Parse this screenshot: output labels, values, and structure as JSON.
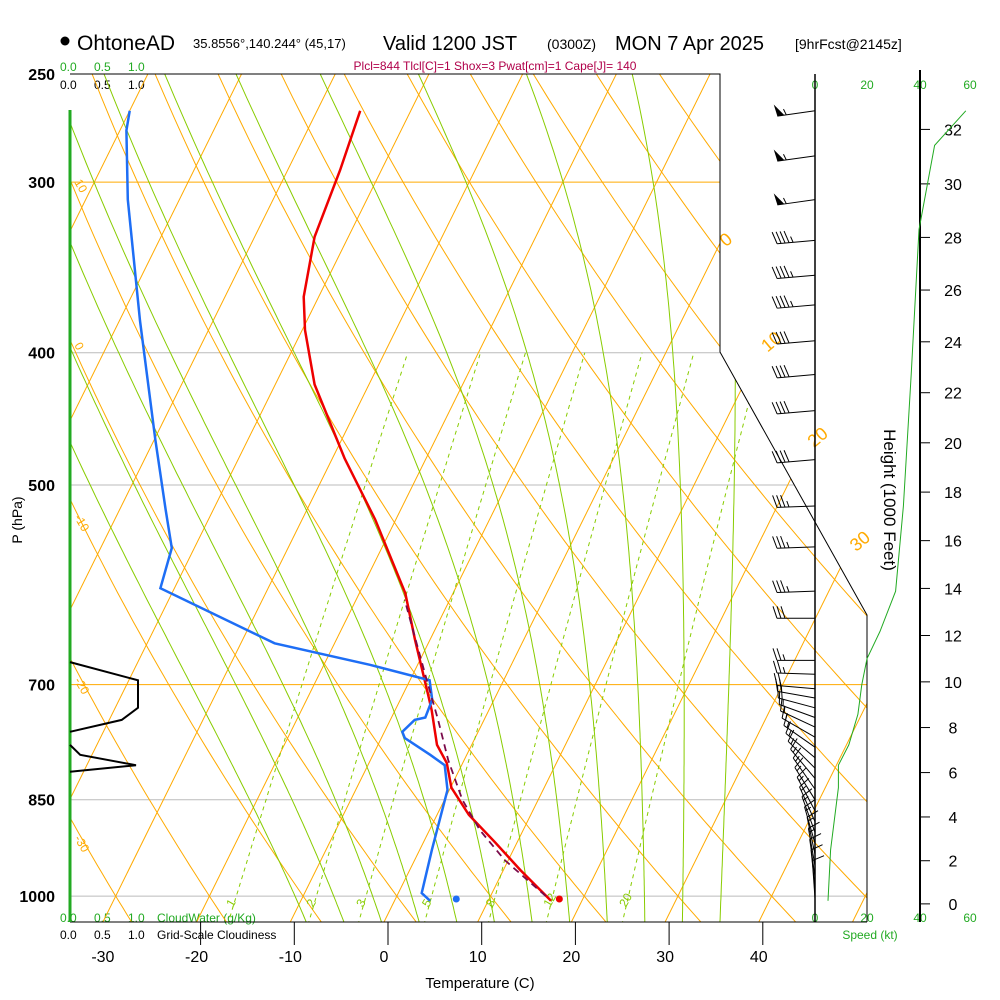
{
  "title": {
    "station": "OhtoneAD",
    "coords": "35.8556°,140.244° (45,17)",
    "valid": "Valid 1200 JST",
    "utc": "(0300Z)",
    "date": "MON 7 Apr 2025",
    "forecast": "[9hrFcst@2145z]"
  },
  "stats_line": "Plcl=844 Tlcl[C]=1 Shox=3 Pwat[cm]=1 Cape[J]= 140",
  "cloud_scale": {
    "water_ticks": [
      "0.0",
      "0.5",
      "1.0"
    ],
    "cover_ticks": [
      "0.0",
      "0.5",
      "1.0"
    ],
    "water_label": "CloudWater (g/Kg)",
    "cover_label": "Grid-Scale Cloudiness"
  },
  "speed_axis": {
    "ticks": [
      "0",
      "20",
      "40",
      "60"
    ],
    "label": "Speed (kt)"
  },
  "colors": {
    "temperature": "#ee0000",
    "dewpoint": "#1e6ef5",
    "parcel": "#7a0a4a",
    "isotherm": "#ffaa00",
    "moist": "#88cc00",
    "speed": "#22aa22",
    "stats": "#b0004a"
  },
  "chart_data": {
    "type": "line",
    "title": "Skew-T log-P sounding",
    "xlabel": "Temperature (C)",
    "ylabel": "P (hPa)",
    "y2label": "Height (1000 Feet)",
    "x_ticks": [
      "-30",
      "-20",
      "-10",
      "0",
      "10",
      "20",
      "30",
      "40"
    ],
    "x_tick_values": [
      -30,
      -20,
      -10,
      0,
      10,
      20,
      30,
      40
    ],
    "p_ticks": [
      "250",
      "300",
      "400",
      "500",
      "700",
      "850",
      "1000"
    ],
    "p_tick_values": [
      250,
      300,
      400,
      500,
      700,
      850,
      1000
    ],
    "highlight_pressures": [
      300,
      700
    ],
    "height_ticks": [
      "0",
      "2",
      "4",
      "6",
      "8",
      "10",
      "12",
      "14",
      "16",
      "18",
      "20",
      "22",
      "24",
      "26",
      "28",
      "30",
      "32"
    ],
    "isotherm_labels": [
      {
        "t": 0,
        "text": "0"
      },
      {
        "t": 10,
        "text": "10"
      },
      {
        "t": 20,
        "text": "20"
      },
      {
        "t": 30,
        "text": "30"
      }
    ],
    "adiabat_labels": [
      {
        "p": 300,
        "text": "10"
      },
      {
        "p": 395,
        "text": "0"
      },
      {
        "p": 528,
        "text": "-10"
      },
      {
        "p": 695,
        "text": "-20"
      },
      {
        "p": 907,
        "text": "-30"
      }
    ],
    "isotherms": [
      -110,
      -100,
      -90,
      -80,
      -70,
      -60,
      -50,
      -40,
      -30,
      -20,
      -10,
      0,
      10,
      20,
      30,
      40,
      50
    ],
    "dry_adiabats": [
      -30,
      -20,
      -10,
      0,
      10,
      20,
      30,
      40,
      50,
      60,
      70,
      80,
      90,
      100,
      110,
      120,
      130,
      140,
      150,
      160,
      170
    ],
    "moist_adiabats": [
      -8,
      -4,
      0,
      4,
      8,
      12,
      16,
      20,
      24,
      28,
      32,
      36
    ],
    "mixing_ratios": [
      {
        "w": 1,
        "label": "1"
      },
      {
        "w": 2,
        "label": "2"
      },
      {
        "w": 3,
        "label": "3"
      },
      {
        "w": 5,
        "label": "5"
      },
      {
        "w": 8,
        "label": "8"
      },
      {
        "w": 12,
        "label": "12"
      },
      {
        "w": 20,
        "label": "20"
      }
    ],
    "series": [
      {
        "name": "Temperature",
        "points": [
          [
            1008,
            16.7
          ],
          [
            957,
            11.8
          ],
          [
            914,
            7.7
          ],
          [
            872,
            3.4
          ],
          [
            833,
            0.1
          ],
          [
            799,
            -1.7
          ],
          [
            775,
            -3.7
          ],
          [
            731,
            -6.1
          ],
          [
            712,
            -7.3
          ],
          [
            649,
            -11.6
          ],
          [
            600,
            -15.1
          ],
          [
            530,
            -22.2
          ],
          [
            478,
            -28.7
          ],
          [
            422,
            -35.8
          ],
          [
            385,
            -39.7
          ],
          [
            364,
            -41.6
          ],
          [
            329,
            -43.6
          ],
          [
            294,
            -44.4
          ],
          [
            266,
            -45.4
          ]
        ]
      },
      {
        "name": "Dewpoint",
        "points": [
          [
            1008,
            3.8
          ],
          [
            995,
            2.5
          ],
          [
            925,
            1.3
          ],
          [
            836,
            -0.2
          ],
          [
            802,
            -1.8
          ],
          [
            788,
            -3.9
          ],
          [
            766,
            -7.5
          ],
          [
            758,
            -8.1
          ],
          [
            743,
            -7.4
          ],
          [
            740,
            -6.4
          ],
          [
            718,
            -6.6
          ],
          [
            695,
            -7.9
          ],
          [
            677,
            -15.1
          ],
          [
            653,
            -26.4
          ],
          [
            595,
            -41.5
          ],
          [
            556,
            -42.4
          ],
          [
            521,
            -45.1
          ],
          [
            463,
            -49.9
          ],
          [
            379,
            -57.8
          ],
          [
            309,
            -65.5
          ],
          [
            275,
            -69.3
          ],
          [
            266,
            -70.0
          ]
        ]
      },
      {
        "name": "Parcel",
        "points": [
          [
            1000,
            15.9
          ],
          [
            941,
            9.6
          ],
          [
            895,
            5.4
          ],
          [
            850,
            1.9
          ],
          [
            795,
            -1.7
          ],
          [
            743,
            -4.9
          ],
          [
            695,
            -8.2
          ],
          [
            607,
            -14.8
          ]
        ]
      }
    ],
    "surface": {
      "p": 1005,
      "t": 17.5,
      "td": 6.5
    },
    "cloudiness": [
      [
        674,
        0
      ],
      [
        695,
        1.0
      ],
      [
        728,
        1.0
      ],
      [
        743,
        0.76
      ],
      [
        758,
        0
      ],
      [
        775,
        0
      ],
      [
        788,
        0.15
      ],
      [
        802,
        0.97
      ],
      [
        811,
        0
      ]
    ],
    "wind_speed_profile": [
      [
        1008,
        5
      ],
      [
        925,
        6
      ],
      [
        833,
        9
      ],
      [
        802,
        9
      ],
      [
        775,
        13
      ],
      [
        736,
        16.5
      ],
      [
        700,
        18
      ],
      [
        670,
        20
      ],
      [
        640,
        25
      ],
      [
        598,
        31
      ],
      [
        518,
        34
      ],
      [
        415,
        37
      ],
      [
        325,
        40
      ],
      [
        282,
        46
      ],
      [
        266,
        58
      ]
    ],
    "wind_barbs": [
      [
        266,
        262,
        55
      ],
      [
        287,
        262,
        55
      ],
      [
        309,
        262,
        55
      ],
      [
        331,
        265,
        45
      ],
      [
        351,
        265,
        45
      ],
      [
        369,
        265,
        45
      ],
      [
        392,
        265,
        40
      ],
      [
        415,
        265,
        40
      ],
      [
        441,
        265,
        40
      ],
      [
        479,
        265,
        40
      ],
      [
        518,
        268,
        35
      ],
      [
        555,
        268,
        35
      ],
      [
        598,
        268,
        35
      ],
      [
        626,
        270,
        30
      ],
      [
        672,
        270,
        25
      ],
      [
        688,
        272,
        25
      ],
      [
        705,
        275,
        20
      ],
      [
        716,
        280,
        20
      ],
      [
        728,
        285,
        20
      ],
      [
        740,
        290,
        15
      ],
      [
        752,
        295,
        15
      ],
      [
        765,
        300,
        15
      ],
      [
        778,
        305,
        15
      ],
      [
        792,
        310,
        15
      ],
      [
        806,
        315,
        15
      ],
      [
        820,
        320,
        15
      ],
      [
        835,
        325,
        15
      ],
      [
        850,
        328,
        15
      ],
      [
        866,
        332,
        15
      ],
      [
        882,
        336,
        15
      ],
      [
        898,
        340,
        15
      ],
      [
        915,
        344,
        15
      ],
      [
        932,
        348,
        15
      ],
      [
        950,
        350,
        15
      ],
      [
        968,
        352,
        10
      ],
      [
        986,
        354,
        10
      ],
      [
        1004,
        356,
        10
      ]
    ]
  }
}
